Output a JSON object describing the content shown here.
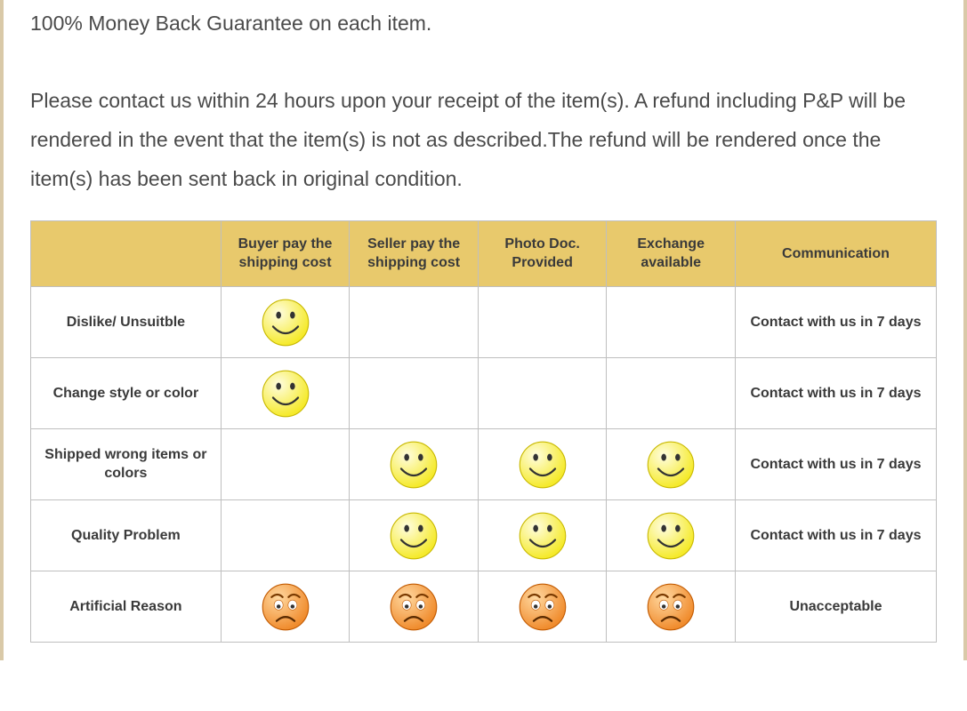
{
  "intro": {
    "line1": "100% Money Back Guarantee on each item.",
    "line2": "Please contact us within 24 hours upon your receipt of the item(s). A refund including P&P will be",
    "line3": "rendered in the event that the item(s) is not as described.The refund will be rendered once the",
    "line4": "item(s) has been sent back in original condition."
  },
  "table": {
    "header_bg": "#e8c96c",
    "border_color": "#bfbfbf",
    "columns": [
      "",
      "Buyer pay the shipping cost",
      "Seller pay the shipping cost",
      "Photo Doc. Provided",
      "Exchange available",
      "Communication"
    ],
    "rows": [
      {
        "label": "Dislike/ Unsuitble",
        "cells": [
          "smile",
          "",
          "",
          "",
          ""
        ],
        "comm": "Contact with us in 7 days"
      },
      {
        "label": "Change style or color",
        "cells": [
          "smile",
          "",
          "",
          "",
          ""
        ],
        "comm": "Contact with us in 7 days"
      },
      {
        "label": "Shipped wrong items or colors",
        "cells": [
          "",
          "smile",
          "smile",
          "smile",
          ""
        ],
        "comm": "Contact with us in 7 days"
      },
      {
        "label": "Quality Problem",
        "cells": [
          "",
          "smile",
          "smile",
          "smile",
          ""
        ],
        "comm": "Contact with us in 7 days"
      },
      {
        "label": "Artificial Reason",
        "cells": [
          "sad",
          "sad",
          "sad",
          "sad",
          ""
        ],
        "comm": "Unacceptable"
      }
    ],
    "emoji_colors": {
      "smile": {
        "fill": "#f5ea2b",
        "highlight": "#fffde0",
        "stroke": "#c8b800",
        "mouth": "#333333",
        "eye": "#333333"
      },
      "sad": {
        "fill": "#f08c2e",
        "highlight": "#ffd8a0",
        "stroke": "#c25a00",
        "mouth": "#5a2a00",
        "eye": "#ffffff",
        "pupil": "#333333",
        "brow": "#7a3a00"
      }
    }
  },
  "style": {
    "page_bg": "#ffffff",
    "side_border": "#d9c9a8",
    "text_color": "#4a4a4a",
    "intro_fontsize": 23,
    "th_fontsize": 16,
    "td_fontsize": 16
  }
}
